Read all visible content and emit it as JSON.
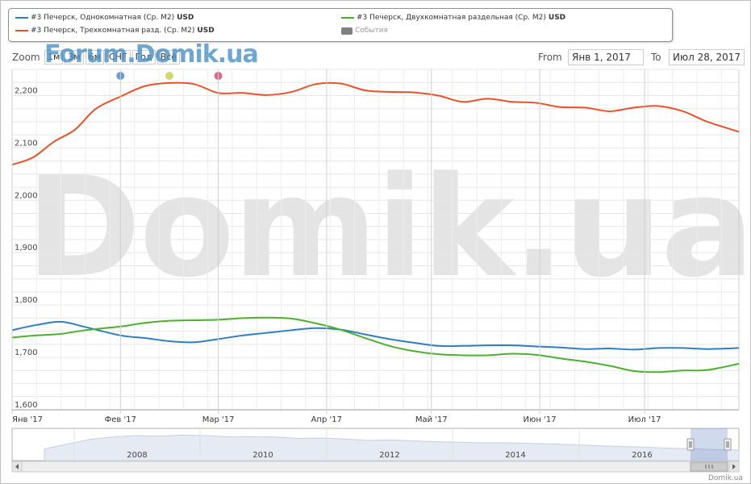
{
  "legend": {
    "items": [
      {
        "label": "#3 Печерск, Однокомнатная (Ср. М2)",
        "unit": "USD",
        "color": "#2f7ebd"
      },
      {
        "label": "#3 Печерск, Двухкомнатная раздельная (Ср. М2)",
        "unit": "USD",
        "color": "#4daf2f"
      },
      {
        "label": "#3 Печерск, Трехкомнатная разд. (Ср. М2)",
        "unit": "USD",
        "color": "#e8532a"
      },
      {
        "label": "События",
        "unit": "",
        "color": "#808080"
      }
    ]
  },
  "zoom": {
    "label": "Zoom",
    "buttons": [
      "1м",
      "3м",
      "6м",
      "СНГ",
      "Год",
      "Всё"
    ]
  },
  "range": {
    "from_label": "From",
    "from_value": "Янв 1, 2017",
    "to_label": "To",
    "to_value": "Июл 28, 2017"
  },
  "watermark": {
    "top": "Forum.Domik.ua",
    "big": "Domik.ua"
  },
  "credit": "Domik.ua",
  "navigator": {
    "years": [
      "2008",
      "2010",
      "2012",
      "2014",
      "2016"
    ]
  },
  "colors": {
    "event_markers": [
      "#6a9ed0",
      "#d4d96c",
      "#d86a90"
    ]
  },
  "chart_data": {
    "type": "line",
    "x_ticks": [
      "Янв '17",
      "Фев '17",
      "Мар '17",
      "Апр '17",
      "Май '17",
      "Июн '17",
      "Июл '17"
    ],
    "ylim": [
      1600,
      2250
    ],
    "y_ticks": [
      1600,
      1700,
      1800,
      1900,
      2000,
      2100,
      2200
    ],
    "y_tick_labels": [
      "1,600",
      "1,700",
      "1,800",
      "1,900",
      "2,000",
      "2,100",
      "2,200"
    ],
    "x_start": "2017-01-01",
    "x_end": "2017-07-28",
    "series": [
      {
        "name": "#3 Печерск, Трехкомнатная разд. (Ср. М2)",
        "color": "#e8532a",
        "points": [
          [
            "2017-01-01",
            2068
          ],
          [
            "2017-01-07",
            2082
          ],
          [
            "2017-01-13",
            2112
          ],
          [
            "2017-01-19",
            2135
          ],
          [
            "2017-01-25",
            2175
          ],
          [
            "2017-02-01",
            2198
          ],
          [
            "2017-02-08",
            2218
          ],
          [
            "2017-02-15",
            2224
          ],
          [
            "2017-02-22",
            2222
          ],
          [
            "2017-03-01",
            2205
          ],
          [
            "2017-03-08",
            2205
          ],
          [
            "2017-03-15",
            2201
          ],
          [
            "2017-03-22",
            2207
          ],
          [
            "2017-03-29",
            2222
          ],
          [
            "2017-04-05",
            2223
          ],
          [
            "2017-04-12",
            2210
          ],
          [
            "2017-04-19",
            2207
          ],
          [
            "2017-04-26",
            2206
          ],
          [
            "2017-05-03",
            2200
          ],
          [
            "2017-05-10",
            2188
          ],
          [
            "2017-05-17",
            2194
          ],
          [
            "2017-05-24",
            2188
          ],
          [
            "2017-05-31",
            2186
          ],
          [
            "2017-06-07",
            2178
          ],
          [
            "2017-06-14",
            2177
          ],
          [
            "2017-06-21",
            2170
          ],
          [
            "2017-06-28",
            2177
          ],
          [
            "2017-07-05",
            2180
          ],
          [
            "2017-07-12",
            2170
          ],
          [
            "2017-07-19",
            2150
          ],
          [
            "2017-07-28",
            2131
          ]
        ]
      },
      {
        "name": "#3 Печерск, Однокомнатная (Ср. М2)",
        "color": "#2f7ebd",
        "points": [
          [
            "2017-01-01",
            1752
          ],
          [
            "2017-01-08",
            1762
          ],
          [
            "2017-01-15",
            1768
          ],
          [
            "2017-01-22",
            1758
          ],
          [
            "2017-02-01",
            1742
          ],
          [
            "2017-02-08",
            1737
          ],
          [
            "2017-02-15",
            1731
          ],
          [
            "2017-02-22",
            1729
          ],
          [
            "2017-03-01",
            1735
          ],
          [
            "2017-03-08",
            1742
          ],
          [
            "2017-03-15",
            1747
          ],
          [
            "2017-03-22",
            1752
          ],
          [
            "2017-03-29",
            1756
          ],
          [
            "2017-04-05",
            1753
          ],
          [
            "2017-04-12",
            1744
          ],
          [
            "2017-04-19",
            1735
          ],
          [
            "2017-04-26",
            1728
          ],
          [
            "2017-05-03",
            1722
          ],
          [
            "2017-05-10",
            1722
          ],
          [
            "2017-05-17",
            1723
          ],
          [
            "2017-05-24",
            1723
          ],
          [
            "2017-05-31",
            1721
          ],
          [
            "2017-06-07",
            1719
          ],
          [
            "2017-06-14",
            1716
          ],
          [
            "2017-06-21",
            1717
          ],
          [
            "2017-06-28",
            1715
          ],
          [
            "2017-07-05",
            1718
          ],
          [
            "2017-07-12",
            1718
          ],
          [
            "2017-07-19",
            1716
          ],
          [
            "2017-07-28",
            1718
          ]
        ]
      },
      {
        "name": "#3 Печерск, Двухкомнатная раздельная (Ср. М2)",
        "color": "#4daf2f",
        "points": [
          [
            "2017-01-01",
            1738
          ],
          [
            "2017-01-08",
            1742
          ],
          [
            "2017-01-15",
            1745
          ],
          [
            "2017-01-22",
            1752
          ],
          [
            "2017-02-01",
            1759
          ],
          [
            "2017-02-08",
            1766
          ],
          [
            "2017-02-15",
            1770
          ],
          [
            "2017-02-22",
            1771
          ],
          [
            "2017-03-01",
            1772
          ],
          [
            "2017-03-08",
            1775
          ],
          [
            "2017-03-15",
            1776
          ],
          [
            "2017-03-22",
            1774
          ],
          [
            "2017-03-29",
            1765
          ],
          [
            "2017-04-05",
            1753
          ],
          [
            "2017-04-12",
            1737
          ],
          [
            "2017-04-19",
            1722
          ],
          [
            "2017-04-26",
            1712
          ],
          [
            "2017-05-03",
            1706
          ],
          [
            "2017-05-10",
            1704
          ],
          [
            "2017-05-17",
            1704
          ],
          [
            "2017-05-24",
            1707
          ],
          [
            "2017-05-31",
            1705
          ],
          [
            "2017-06-07",
            1698
          ],
          [
            "2017-06-14",
            1692
          ],
          [
            "2017-06-21",
            1684
          ],
          [
            "2017-06-28",
            1674
          ],
          [
            "2017-07-05",
            1672
          ],
          [
            "2017-07-12",
            1675
          ],
          [
            "2017-07-19",
            1676
          ],
          [
            "2017-07-28",
            1688
          ]
        ]
      }
    ]
  }
}
